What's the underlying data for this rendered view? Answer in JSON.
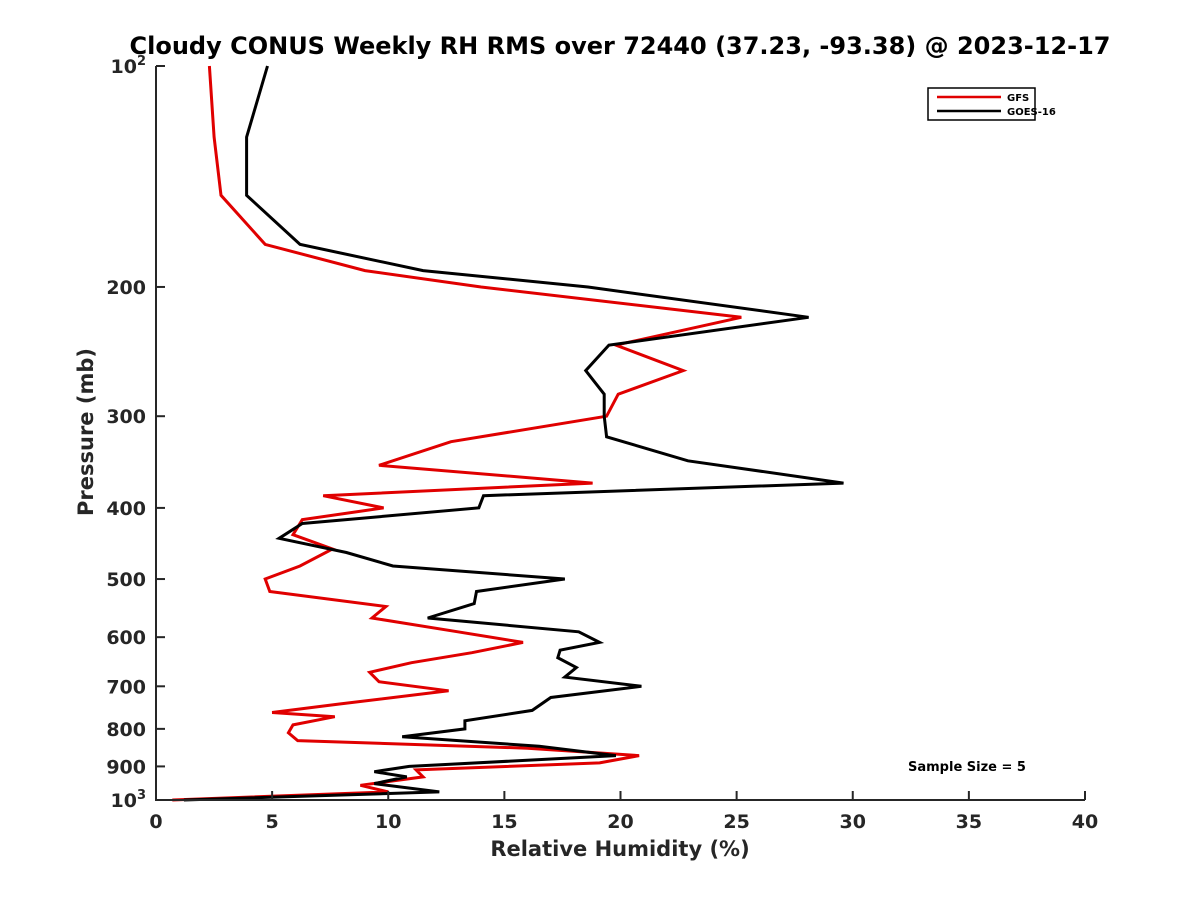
{
  "chart_data": {
    "type": "line",
    "title": "Cloudy CONUS Weekly RH RMS over 72440 (37.23, -93.38) @ 2023-12-17",
    "xlabel": "Relative Humidity (%)",
    "ylabel": "Pressure (mb)",
    "xlim": [
      0,
      40
    ],
    "ylim": [
      100,
      1000
    ],
    "y_scale": "log",
    "y_reversed": true,
    "grid": false,
    "legend_position": "top-right",
    "x_ticks": [
      "0",
      "5",
      "10",
      "15",
      "20",
      "25",
      "30",
      "35",
      "40"
    ],
    "y_ticks": [
      {
        "value": 100,
        "label": "10",
        "sup": "2"
      },
      {
        "value": 200,
        "label": "200",
        "sup": ""
      },
      {
        "value": 300,
        "label": "300",
        "sup": ""
      },
      {
        "value": 400,
        "label": "400",
        "sup": ""
      },
      {
        "value": 500,
        "label": "500",
        "sup": ""
      },
      {
        "value": 600,
        "label": "600",
        "sup": ""
      },
      {
        "value": 700,
        "label": "700",
        "sup": ""
      },
      {
        "value": 800,
        "label": "800",
        "sup": ""
      },
      {
        "value": 900,
        "label": "900",
        "sup": ""
      },
      {
        "value": 1000,
        "label": "10",
        "sup": "3"
      }
    ],
    "annotation": "Sample Size = 5",
    "series": [
      {
        "name": "GFS",
        "color": "#e00000",
        "points": [
          [
            2.3,
            100
          ],
          [
            2.5,
            125
          ],
          [
            2.8,
            150
          ],
          [
            4.7,
            175
          ],
          [
            9.0,
            190
          ],
          [
            14.0,
            200
          ],
          [
            25.2,
            220
          ],
          [
            19.8,
            240
          ],
          [
            22.7,
            260
          ],
          [
            19.9,
            280
          ],
          [
            19.4,
            300
          ],
          [
            12.7,
            325
          ],
          [
            9.6,
            350
          ],
          [
            18.8,
            370
          ],
          [
            7.2,
            385
          ],
          [
            9.8,
            400
          ],
          [
            6.3,
            415
          ],
          [
            5.9,
            435
          ],
          [
            7.6,
            455
          ],
          [
            6.2,
            480
          ],
          [
            4.7,
            500
          ],
          [
            4.9,
            520
          ],
          [
            9.9,
            545
          ],
          [
            9.3,
            565
          ],
          [
            13.0,
            590
          ],
          [
            15.8,
            610
          ],
          [
            13.6,
            630
          ],
          [
            11.0,
            650
          ],
          [
            9.2,
            670
          ],
          [
            9.6,
            690
          ],
          [
            12.6,
            710
          ],
          [
            7.9,
            740
          ],
          [
            5.0,
            760
          ],
          [
            7.7,
            770
          ],
          [
            5.9,
            790
          ],
          [
            5.7,
            810
          ],
          [
            6.1,
            830
          ],
          [
            16.0,
            850
          ],
          [
            20.8,
            870
          ],
          [
            19.1,
            890
          ],
          [
            11.2,
            910
          ],
          [
            11.5,
            930
          ],
          [
            8.8,
            955
          ],
          [
            10.0,
            975
          ],
          [
            0.7,
            1000
          ]
        ]
      },
      {
        "name": "GOES-16",
        "color": "#000000",
        "points": [
          [
            4.8,
            100
          ],
          [
            3.9,
            125
          ],
          [
            3.9,
            150
          ],
          [
            6.2,
            175
          ],
          [
            11.5,
            190
          ],
          [
            18.6,
            200
          ],
          [
            28.1,
            220
          ],
          [
            19.5,
            240
          ],
          [
            18.5,
            260
          ],
          [
            19.3,
            280
          ],
          [
            19.3,
            300
          ],
          [
            19.4,
            320
          ],
          [
            22.9,
            345
          ],
          [
            29.6,
            370
          ],
          [
            14.1,
            385
          ],
          [
            13.9,
            400
          ],
          [
            6.3,
            420
          ],
          [
            5.3,
            440
          ],
          [
            8.2,
            460
          ],
          [
            10.2,
            480
          ],
          [
            17.6,
            500
          ],
          [
            13.8,
            520
          ],
          [
            13.7,
            540
          ],
          [
            11.7,
            565
          ],
          [
            18.2,
            590
          ],
          [
            19.1,
            610
          ],
          [
            17.4,
            625
          ],
          [
            17.3,
            640
          ],
          [
            18.1,
            660
          ],
          [
            17.6,
            680
          ],
          [
            20.9,
            700
          ],
          [
            17.0,
            725
          ],
          [
            16.2,
            755
          ],
          [
            13.3,
            780
          ],
          [
            13.3,
            800
          ],
          [
            10.6,
            820
          ],
          [
            16.5,
            845
          ],
          [
            19.8,
            870
          ],
          [
            10.9,
            900
          ],
          [
            9.4,
            915
          ],
          [
            10.8,
            930
          ],
          [
            9.4,
            950
          ],
          [
            12.2,
            975
          ],
          [
            1.2,
            1000
          ]
        ]
      }
    ]
  }
}
